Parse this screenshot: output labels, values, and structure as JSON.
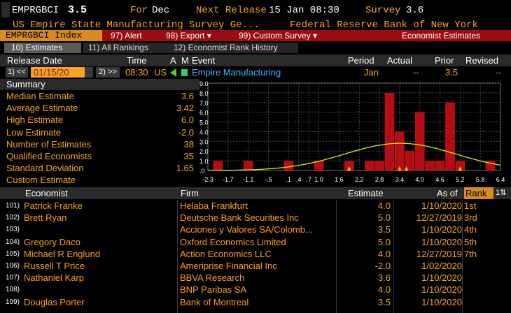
{
  "ticker": {
    "symbol": "EMPRGBCI",
    "value": "3.5",
    "for_label": "For",
    "for_value": "Dec",
    "next_release_label": "Next Release",
    "next_release_value": "15 Jan 08:30",
    "survey_label": "Survey",
    "survey_value": "3.6"
  },
  "subtitle": {
    "name": "US Empire State Manufacturing Survey Ge...",
    "source": "Federal Reserve Bank of New York"
  },
  "toolbar": {
    "index": "EMPRGBCI Index",
    "alert": "97) Alert",
    "export": "98) Export ▾",
    "custom_survey": "99) Custom Survey ▾",
    "economist_estimates": "Economist Estimates"
  },
  "tabs": [
    {
      "label": "10) Estimates"
    },
    {
      "label": "11) All Rankings"
    },
    {
      "label": "12) Economist Rank History"
    }
  ],
  "columns": {
    "release_date": "Release Date",
    "time": "Time",
    "a": "A",
    "m": "M",
    "event": "Event",
    "period": "Period",
    "actual": "Actual",
    "prior": "Prior",
    "revised": "Revised"
  },
  "event_row": {
    "prev": "1) <<",
    "date": "01/15/20",
    "next": "2) >>",
    "time": "08:30",
    "country": "US",
    "event": "Empire Manufacturing",
    "period": "Jan",
    "actual": "--",
    "prior": "3.5",
    "revised": "--"
  },
  "summary": {
    "title": "Summary",
    "rows": [
      {
        "label": "Median Estimate",
        "value": "3.6"
      },
      {
        "label": "Average Estimate",
        "value": "3.42"
      },
      {
        "label": "High Estimate",
        "value": "6.0"
      },
      {
        "label": "Low Estimate",
        "value": "-2.0"
      },
      {
        "label": "Number of Estimates",
        "value": "38"
      },
      {
        "label": "Qualified Economists",
        "value": "35"
      },
      {
        "label": "Standard Deviation",
        "value": "1.65"
      },
      {
        "label": "Custom Estimate",
        "value": ""
      }
    ]
  },
  "chart_data": {
    "type": "bar",
    "y_ticks": [
      "9.0",
      "8.0",
      "7.0",
      "6.0",
      "5.0",
      "4.0",
      "3.0",
      "2.0",
      "1.0",
      ".0"
    ],
    "ylim": [
      0,
      9
    ],
    "x_tick_labels": [
      "-2.3",
      "-1.7",
      "-1.1",
      "-.5",
      ".1",
      ".4",
      ".7",
      "1.0",
      "1.6",
      "2.2",
      "2.8",
      "3.4",
      "4.0",
      "4.6",
      "5.2",
      "5.8",
      "6.4"
    ],
    "xlim": [
      -2.3,
      6.4
    ],
    "bins": [
      {
        "x": -2.0,
        "count": 1
      },
      {
        "x": -1.1,
        "count": 1
      },
      {
        "x": 0.1,
        "count": 1
      },
      {
        "x": 1.0,
        "count": 1
      },
      {
        "x": 1.9,
        "count": 1
      },
      {
        "x": 2.5,
        "count": 1
      },
      {
        "x": 2.8,
        "count": 1
      },
      {
        "x": 3.1,
        "count": 8
      },
      {
        "x": 3.4,
        "count": 4
      },
      {
        "x": 3.7,
        "count": 2
      },
      {
        "x": 4.0,
        "count": 6
      },
      {
        "x": 4.3,
        "count": 1
      },
      {
        "x": 4.6,
        "count": 1
      },
      {
        "x": 4.9,
        "count": 7
      },
      {
        "x": 5.2,
        "count": 1
      },
      {
        "x": 6.1,
        "count": 1
      }
    ],
    "normal_curve": {
      "mean": 3.42,
      "sd": 1.65,
      "peak": 2.8
    },
    "markers": [
      {
        "x": 1.9
      },
      {
        "x": 3.4
      },
      {
        "x": 3.6
      },
      {
        "x": 5.2
      }
    ],
    "colors": {
      "bars": "#b50d12",
      "curve": "#e6e600",
      "grid": "#4a4a4a",
      "markers": "#f5a623"
    }
  },
  "economist_table": {
    "headers": {
      "economist": "Economist",
      "firm": "Firm",
      "estimate": "Estimate",
      "as_of": "As of",
      "rank": "Rank"
    },
    "rows": [
      {
        "num": "101)",
        "name": "Patrick Franke",
        "firm": "Helaba Frankfurt",
        "estimate": "4.0",
        "as_of": "1/10/2020",
        "rank": "1st"
      },
      {
        "num": "102)",
        "name": "Brett Ryan",
        "firm": "Deutsche Bank Securities Inc",
        "estimate": "5.0",
        "as_of": "12/27/2019",
        "rank": "3rd"
      },
      {
        "num": "103)",
        "name": "",
        "firm": "Acciones y Valores SA/Colomb...",
        "estimate": "3.5",
        "as_of": "1/10/2020",
        "rank": "4th"
      },
      {
        "num": "104)",
        "name": "Gregory Daco",
        "firm": "Oxford Economics Limited",
        "estimate": "5.0",
        "as_of": "1/10/2020",
        "rank": "5th"
      },
      {
        "num": "105)",
        "name": "Michael R Englund",
        "firm": "Action Economics LLC",
        "estimate": "4.0",
        "as_of": "12/27/2019",
        "rank": "7th"
      },
      {
        "num": "106)",
        "name": "Russell T Price",
        "firm": "Ameriprise Financial Inc",
        "estimate": "-2.0",
        "as_of": "1/02/2020",
        "rank": ""
      },
      {
        "num": "107)",
        "name": "Nathaniel Karp",
        "firm": "BBVA Research",
        "estimate": "3.6",
        "as_of": "1/10/2020",
        "rank": ""
      },
      {
        "num": "108)",
        "name": "",
        "firm": "BNP Paribas SA",
        "estimate": "4.0",
        "as_of": "1/10/2020",
        "rank": ""
      },
      {
        "num": "109)",
        "name": "Douglas Porter",
        "firm": "Bank of Montreal",
        "estimate": "3.5",
        "as_of": "1/10/2020",
        "rank": ""
      }
    ]
  }
}
